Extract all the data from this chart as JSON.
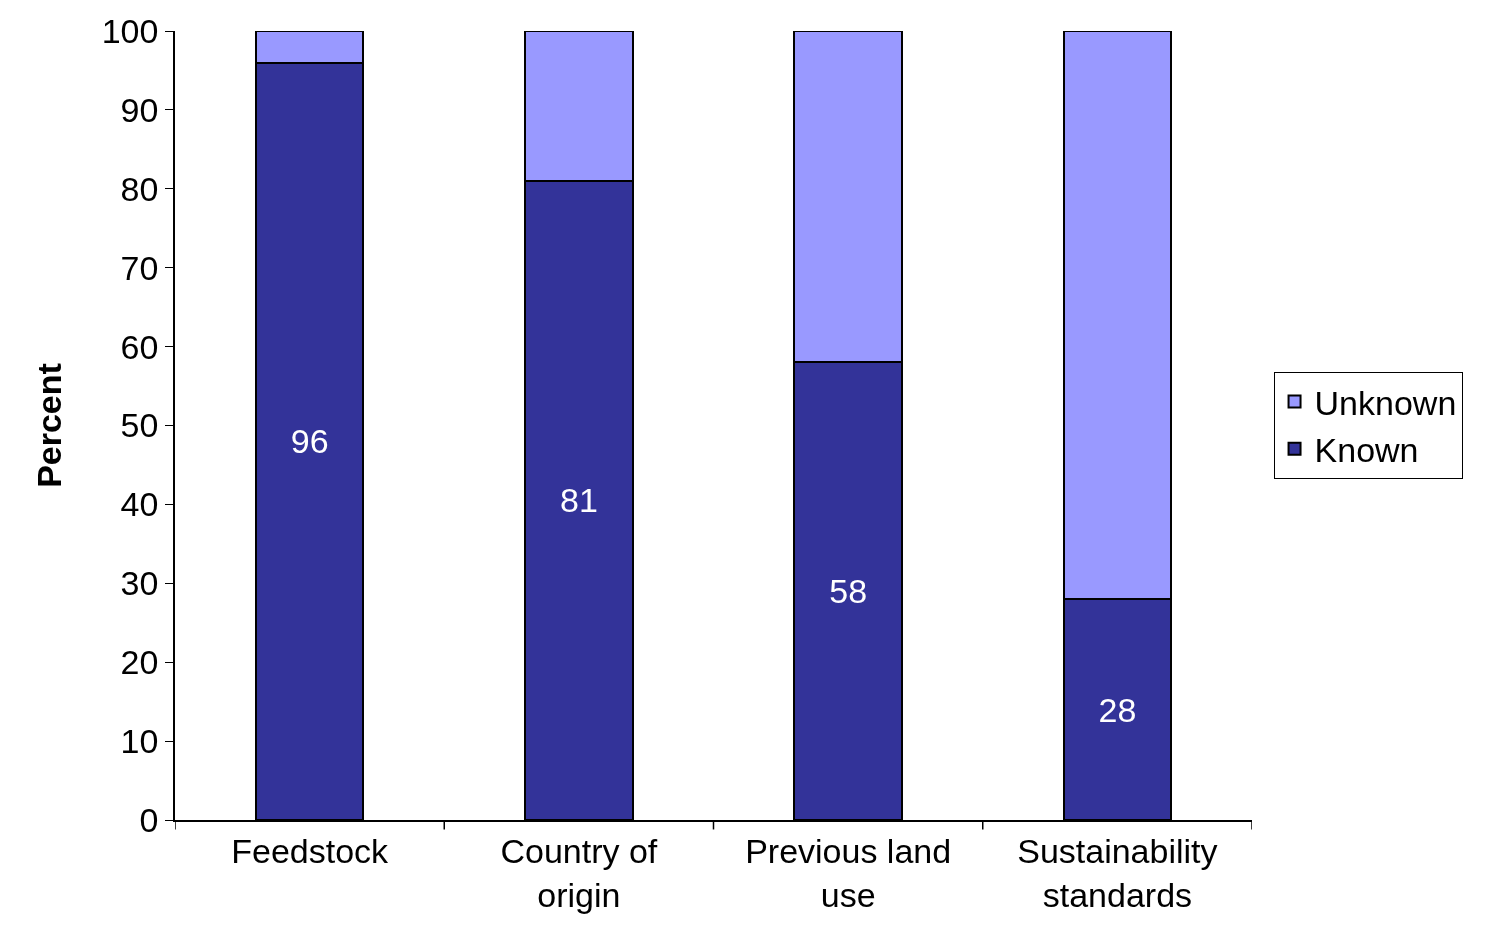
{
  "chart_data": {
    "type": "bar",
    "stacked": true,
    "ylabel": "Percent",
    "categories": [
      "Feedstock",
      "Country of origin",
      "Previous land use",
      "Sustainability standards"
    ],
    "series": [
      {
        "name": "Known",
        "color": "#333399",
        "values": [
          96,
          81,
          58,
          28
        ],
        "value_labels": [
          "96",
          "81",
          "58",
          "28"
        ]
      },
      {
        "name": "Unknown",
        "color": "#9999ff",
        "values": [
          4,
          19,
          42,
          72
        ]
      }
    ],
    "ylim": [
      0,
      100
    ],
    "yticks": [
      0,
      10,
      20,
      30,
      40,
      50,
      60,
      70,
      80,
      90,
      100
    ],
    "grid": false,
    "legend": "right"
  }
}
